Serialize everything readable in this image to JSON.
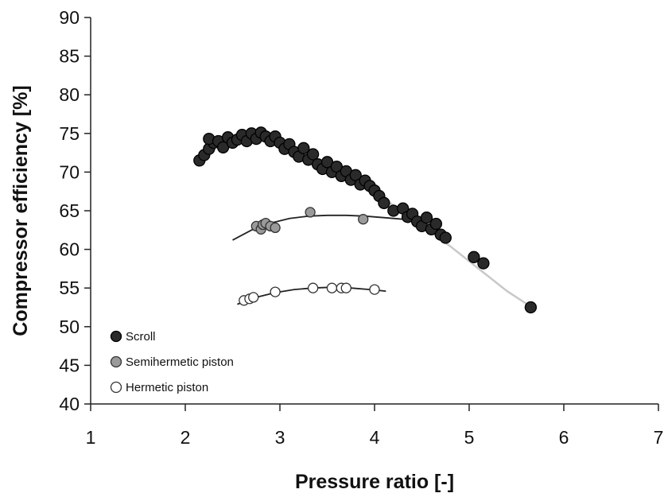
{
  "chart_data": {
    "type": "scatter",
    "title": "",
    "xlabel": "Pressure ratio [-]",
    "ylabel": "Compressor efficiency [%]",
    "xlim": [
      1,
      7
    ],
    "ylim": [
      40,
      90
    ],
    "x_ticks": [
      1,
      2,
      3,
      4,
      5,
      6,
      7
    ],
    "y_ticks": [
      40,
      45,
      50,
      55,
      60,
      65,
      70,
      75,
      80,
      85,
      90
    ],
    "grid": false,
    "legend_position": "bottom-left",
    "series": [
      {
        "name": "Scroll",
        "marker": "filled-circle",
        "color": "#2a2a2a",
        "stroke": "#000000",
        "points": [
          [
            2.15,
            71.5
          ],
          [
            2.2,
            72.2
          ],
          [
            2.25,
            73.0
          ],
          [
            2.3,
            73.8
          ],
          [
            2.25,
            74.3
          ],
          [
            2.35,
            74.0
          ],
          [
            2.4,
            73.2
          ],
          [
            2.45,
            74.5
          ],
          [
            2.5,
            73.8
          ],
          [
            2.55,
            74.2
          ],
          [
            2.6,
            74.8
          ],
          [
            2.65,
            74.0
          ],
          [
            2.7,
            75.0
          ],
          [
            2.75,
            74.3
          ],
          [
            2.8,
            75.1
          ],
          [
            2.85,
            74.6
          ],
          [
            2.9,
            74.0
          ],
          [
            2.95,
            74.6
          ],
          [
            3.0,
            73.8
          ],
          [
            3.05,
            73.0
          ],
          [
            3.1,
            73.6
          ],
          [
            3.15,
            72.6
          ],
          [
            3.2,
            72.0
          ],
          [
            3.25,
            73.1
          ],
          [
            3.3,
            71.6
          ],
          [
            3.35,
            72.3
          ],
          [
            3.4,
            71.0
          ],
          [
            3.45,
            70.4
          ],
          [
            3.5,
            71.3
          ],
          [
            3.55,
            70.0
          ],
          [
            3.6,
            70.7
          ],
          [
            3.65,
            69.5
          ],
          [
            3.7,
            70.1
          ],
          [
            3.75,
            69.0
          ],
          [
            3.8,
            69.6
          ],
          [
            3.85,
            68.4
          ],
          [
            3.9,
            68.9
          ],
          [
            3.95,
            68.2
          ],
          [
            4.0,
            67.6
          ],
          [
            4.05,
            66.9
          ],
          [
            4.1,
            66.0
          ],
          [
            4.2,
            65.0
          ],
          [
            4.3,
            65.3
          ],
          [
            4.35,
            64.2
          ],
          [
            4.4,
            64.6
          ],
          [
            4.45,
            63.6
          ],
          [
            4.5,
            63.0
          ],
          [
            4.55,
            64.1
          ],
          [
            4.6,
            62.6
          ],
          [
            4.65,
            63.3
          ],
          [
            4.7,
            61.9
          ],
          [
            4.75,
            61.5
          ],
          [
            5.05,
            59.0
          ],
          [
            5.15,
            58.2
          ],
          [
            5.65,
            52.5
          ]
        ],
        "fit": [
          [
            2.15,
            71.6
          ],
          [
            2.4,
            73.7
          ],
          [
            2.7,
            74.3
          ],
          [
            3.0,
            73.7
          ],
          [
            3.3,
            72.2
          ],
          [
            3.6,
            70.3
          ],
          [
            3.9,
            68.1
          ],
          [
            4.2,
            65.7
          ],
          [
            4.5,
            63.1
          ],
          [
            4.8,
            60.4
          ],
          [
            5.1,
            57.5
          ],
          [
            5.4,
            54.6
          ],
          [
            5.65,
            52.6
          ]
        ]
      },
      {
        "name": "Semihermetic piston",
        "marker": "grey-circle",
        "color": "#9a9a9a",
        "stroke": "#333333",
        "points": [
          [
            2.75,
            63.0
          ],
          [
            2.8,
            62.6
          ],
          [
            2.82,
            63.2
          ],
          [
            2.85,
            63.4
          ],
          [
            2.9,
            63.0
          ],
          [
            2.95,
            62.8
          ],
          [
            3.32,
            64.8
          ],
          [
            3.88,
            63.9
          ]
        ],
        "fit": [
          [
            2.5,
            61.2
          ],
          [
            2.7,
            62.5
          ],
          [
            2.9,
            63.4
          ],
          [
            3.1,
            64.0
          ],
          [
            3.3,
            64.3
          ],
          [
            3.5,
            64.4
          ],
          [
            3.7,
            64.4
          ],
          [
            3.9,
            64.3
          ],
          [
            4.1,
            64.1
          ],
          [
            4.3,
            63.9
          ],
          [
            4.5,
            63.7
          ],
          [
            4.7,
            63.5
          ]
        ]
      },
      {
        "name": "Hermetic piston",
        "marker": "open-circle",
        "color": "#ffffff",
        "stroke": "#333333",
        "points": [
          [
            2.62,
            53.4
          ],
          [
            2.68,
            53.6
          ],
          [
            2.72,
            53.8
          ],
          [
            2.95,
            54.5
          ],
          [
            3.35,
            55.0
          ],
          [
            3.55,
            55.0
          ],
          [
            3.65,
            55.0
          ],
          [
            3.7,
            55.0
          ],
          [
            4.0,
            54.8
          ]
        ],
        "fit": [
          [
            2.55,
            52.9
          ],
          [
            2.75,
            53.8
          ],
          [
            2.95,
            54.4
          ],
          [
            3.15,
            54.8
          ],
          [
            3.35,
            55.0
          ],
          [
            3.55,
            55.1
          ],
          [
            3.75,
            55.0
          ],
          [
            3.95,
            54.8
          ],
          [
            4.12,
            54.6
          ]
        ]
      }
    ]
  }
}
